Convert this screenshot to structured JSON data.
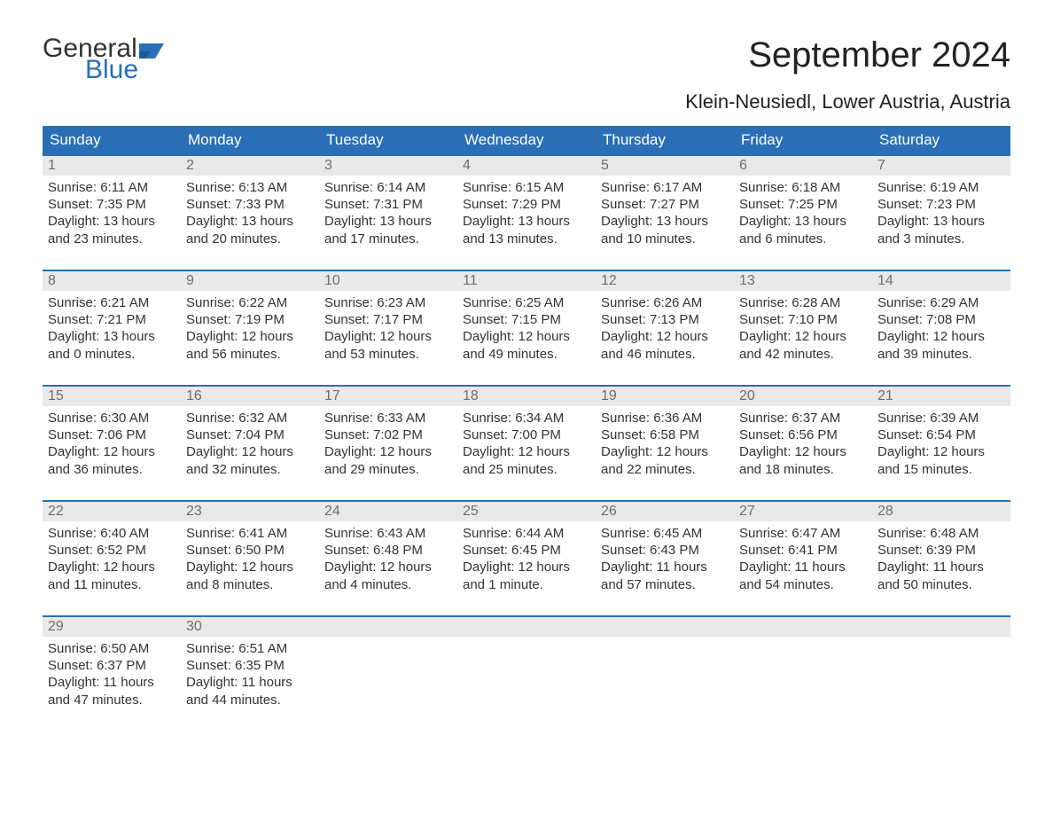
{
  "brand": {
    "word1": "General",
    "word2": "Blue",
    "color_text": "#333333",
    "color_blue": "#2a6fb5"
  },
  "title": "September 2024",
  "subtitle": "Klein-Neusiedl, Lower Austria, Austria",
  "colors": {
    "header_bg": "#2a6fb5",
    "header_text": "#ffffff",
    "daynum_bg": "#e9e9e9",
    "daynum_text": "#6d6d6d",
    "body_text": "#333333",
    "row_border": "#2a6fb5",
    "background": "#ffffff"
  },
  "fonts": {
    "title_size": 40,
    "subtitle_size": 22,
    "weekday_size": 17,
    "daynum_size": 16,
    "content_size": 15
  },
  "weekdays": [
    "Sunday",
    "Monday",
    "Tuesday",
    "Wednesday",
    "Thursday",
    "Friday",
    "Saturday"
  ],
  "labels": {
    "sunrise": "Sunrise:",
    "sunset": "Sunset:",
    "daylight": "Daylight:"
  },
  "weeks": [
    [
      {
        "n": "1",
        "sunrise": "6:11 AM",
        "sunset": "7:35 PM",
        "daylight1": "13 hours",
        "daylight2": "and 23 minutes."
      },
      {
        "n": "2",
        "sunrise": "6:13 AM",
        "sunset": "7:33 PM",
        "daylight1": "13 hours",
        "daylight2": "and 20 minutes."
      },
      {
        "n": "3",
        "sunrise": "6:14 AM",
        "sunset": "7:31 PM",
        "daylight1": "13 hours",
        "daylight2": "and 17 minutes."
      },
      {
        "n": "4",
        "sunrise": "6:15 AM",
        "sunset": "7:29 PM",
        "daylight1": "13 hours",
        "daylight2": "and 13 minutes."
      },
      {
        "n": "5",
        "sunrise": "6:17 AM",
        "sunset": "7:27 PM",
        "daylight1": "13 hours",
        "daylight2": "and 10 minutes."
      },
      {
        "n": "6",
        "sunrise": "6:18 AM",
        "sunset": "7:25 PM",
        "daylight1": "13 hours",
        "daylight2": "and 6 minutes."
      },
      {
        "n": "7",
        "sunrise": "6:19 AM",
        "sunset": "7:23 PM",
        "daylight1": "13 hours",
        "daylight2": "and 3 minutes."
      }
    ],
    [
      {
        "n": "8",
        "sunrise": "6:21 AM",
        "sunset": "7:21 PM",
        "daylight1": "13 hours",
        "daylight2": "and 0 minutes."
      },
      {
        "n": "9",
        "sunrise": "6:22 AM",
        "sunset": "7:19 PM",
        "daylight1": "12 hours",
        "daylight2": "and 56 minutes."
      },
      {
        "n": "10",
        "sunrise": "6:23 AM",
        "sunset": "7:17 PM",
        "daylight1": "12 hours",
        "daylight2": "and 53 minutes."
      },
      {
        "n": "11",
        "sunrise": "6:25 AM",
        "sunset": "7:15 PM",
        "daylight1": "12 hours",
        "daylight2": "and 49 minutes."
      },
      {
        "n": "12",
        "sunrise": "6:26 AM",
        "sunset": "7:13 PM",
        "daylight1": "12 hours",
        "daylight2": "and 46 minutes."
      },
      {
        "n": "13",
        "sunrise": "6:28 AM",
        "sunset": "7:10 PM",
        "daylight1": "12 hours",
        "daylight2": "and 42 minutes."
      },
      {
        "n": "14",
        "sunrise": "6:29 AM",
        "sunset": "7:08 PM",
        "daylight1": "12 hours",
        "daylight2": "and 39 minutes."
      }
    ],
    [
      {
        "n": "15",
        "sunrise": "6:30 AM",
        "sunset": "7:06 PM",
        "daylight1": "12 hours",
        "daylight2": "and 36 minutes."
      },
      {
        "n": "16",
        "sunrise": "6:32 AM",
        "sunset": "7:04 PM",
        "daylight1": "12 hours",
        "daylight2": "and 32 minutes."
      },
      {
        "n": "17",
        "sunrise": "6:33 AM",
        "sunset": "7:02 PM",
        "daylight1": "12 hours",
        "daylight2": "and 29 minutes."
      },
      {
        "n": "18",
        "sunrise": "6:34 AM",
        "sunset": "7:00 PM",
        "daylight1": "12 hours",
        "daylight2": "and 25 minutes."
      },
      {
        "n": "19",
        "sunrise": "6:36 AM",
        "sunset": "6:58 PM",
        "daylight1": "12 hours",
        "daylight2": "and 22 minutes."
      },
      {
        "n": "20",
        "sunrise": "6:37 AM",
        "sunset": "6:56 PM",
        "daylight1": "12 hours",
        "daylight2": "and 18 minutes."
      },
      {
        "n": "21",
        "sunrise": "6:39 AM",
        "sunset": "6:54 PM",
        "daylight1": "12 hours",
        "daylight2": "and 15 minutes."
      }
    ],
    [
      {
        "n": "22",
        "sunrise": "6:40 AM",
        "sunset": "6:52 PM",
        "daylight1": "12 hours",
        "daylight2": "and 11 minutes."
      },
      {
        "n": "23",
        "sunrise": "6:41 AM",
        "sunset": "6:50 PM",
        "daylight1": "12 hours",
        "daylight2": "and 8 minutes."
      },
      {
        "n": "24",
        "sunrise": "6:43 AM",
        "sunset": "6:48 PM",
        "daylight1": "12 hours",
        "daylight2": "and 4 minutes."
      },
      {
        "n": "25",
        "sunrise": "6:44 AM",
        "sunset": "6:45 PM",
        "daylight1": "12 hours",
        "daylight2": "and 1 minute."
      },
      {
        "n": "26",
        "sunrise": "6:45 AM",
        "sunset": "6:43 PM",
        "daylight1": "11 hours",
        "daylight2": "and 57 minutes."
      },
      {
        "n": "27",
        "sunrise": "6:47 AM",
        "sunset": "6:41 PM",
        "daylight1": "11 hours",
        "daylight2": "and 54 minutes."
      },
      {
        "n": "28",
        "sunrise": "6:48 AM",
        "sunset": "6:39 PM",
        "daylight1": "11 hours",
        "daylight2": "and 50 minutes."
      }
    ],
    [
      {
        "n": "29",
        "sunrise": "6:50 AM",
        "sunset": "6:37 PM",
        "daylight1": "11 hours",
        "daylight2": "and 47 minutes."
      },
      {
        "n": "30",
        "sunrise": "6:51 AM",
        "sunset": "6:35 PM",
        "daylight1": "11 hours",
        "daylight2": "and 44 minutes."
      },
      null,
      null,
      null,
      null,
      null
    ]
  ]
}
